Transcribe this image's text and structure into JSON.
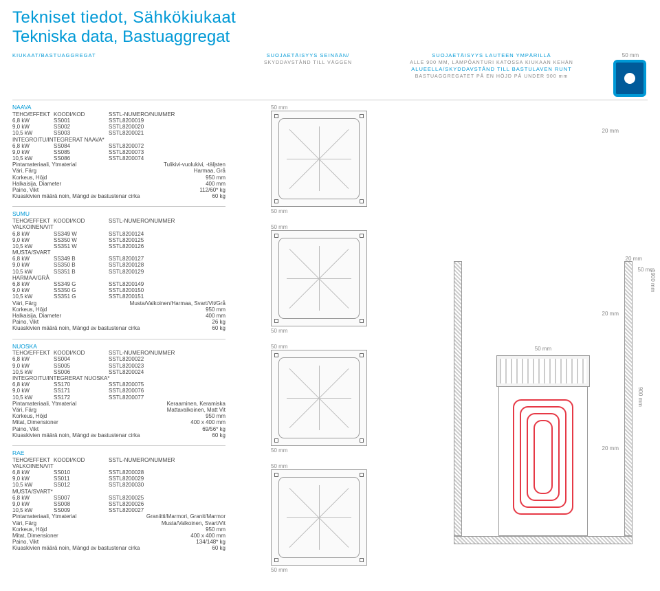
{
  "title1": "Tekniset tiedot, Sähkökiukaat",
  "title2": "Tekniska data, Bastuaggregat",
  "header": {
    "col1_a": "KIUKAAT/BASTUAGGREGAT",
    "col2_a": "SUOJAETÄISYYS SEINÄÄN/",
    "col2_b": "SKYDDAVSTÅND TILL VÄGGEN",
    "col3_a": "SUOJAETÄISYYS LAUTEEN YMPÄRILLÄ",
    "col3_b": "ALLE 900 MM, LÄMPÖANTURI KATOSSA KIUKAAN KEHÄN",
    "col3_c": "ALUEELLA/SKYDDAVSTÅND TILL BASTULAVEN RUNT",
    "col3_d": "BASTUAGGREGATET PÅ EN HÖJD PÅ UNDER 900 mm",
    "badge": "50 mm"
  },
  "cols": {
    "a": "TEHO/EFFEKT",
    "b": "KOODI/KOD",
    "c": "SSTL-NUMERO/NUMMER"
  },
  "naava": {
    "name": "NAAVA",
    "rows": [
      [
        "6,8 kW",
        "SS001",
        "SSTL8200019"
      ],
      [
        "9,0 kW",
        "SS002",
        "SSTL8200020"
      ],
      [
        "10,5 kW",
        "SS003",
        "SSTL8200021"
      ]
    ],
    "sub": "INTEGROITU/INTEGRERAT NAAVA*",
    "rows2": [
      [
        "6,8 kW",
        "SS084",
        "SSTL8200072"
      ],
      [
        "9,0 kW",
        "SS085",
        "SSTL8200073"
      ],
      [
        "10,5 kW",
        "SS086",
        "SSTL8200074"
      ]
    ],
    "details": [
      [
        "Pintamateriaali, Ytmaterial",
        "Tulikivi-vuolukivi, -täljsten"
      ],
      [
        "Väri, Färg",
        "Harmaa, Grå"
      ],
      [
        "Korkeus, Höjd",
        "950 mm"
      ],
      [
        "Halkaisija, Diameter",
        "400 mm"
      ],
      [
        "Paino, Vikt",
        "112/60* kg"
      ],
      [
        "Kiuaskivien määrä noin, Mängd av bastustenar cirka",
        "60 kg"
      ]
    ]
  },
  "sumu": {
    "name": "SUMU",
    "g1": "VALKOINEN/VIT",
    "rows1": [
      [
        "6,8 kW",
        "SS349 W",
        "SSTL8200124"
      ],
      [
        "9,0 kW",
        "SS350 W",
        "SSTL8200125"
      ],
      [
        "10,5 kW",
        "SS351 W",
        "SSTL8200126"
      ]
    ],
    "g2": "MUSTA/SVART",
    "rows2": [
      [
        "6,8 kW",
        "SS349 B",
        "SSTL8200127"
      ],
      [
        "9,0 kW",
        "SS350 B",
        "SSTL8200128"
      ],
      [
        "10,5 kW",
        "SS351 B",
        "SSTL8200129"
      ]
    ],
    "g3": "HARMAA/GRÅ",
    "rows3": [
      [
        "6,8 kW",
        "SS349 G",
        "SSTL8200149"
      ],
      [
        "9,0 kW",
        "SS350 G",
        "SSTL8200150"
      ],
      [
        "10,5 kW",
        "SS351 G",
        "SSTL8200151"
      ]
    ],
    "details": [
      [
        "Väri, Färg",
        "Musta/Valkoinen/Harmaa, Svart/Vit/Grå"
      ],
      [
        "Korkeus, Höjd",
        "950 mm"
      ],
      [
        "Halkaisija, Diameter",
        "400 mm"
      ],
      [
        "Paino, Vikt",
        "26 kg"
      ],
      [
        "Kiuaskivien määrä noin, Mängd av bastustenar cirka",
        "60 kg"
      ]
    ]
  },
  "nuoska": {
    "name": "NUOSKA",
    "rows": [
      [
        "6,8 kW",
        "SS004",
        "SSTL8200022"
      ],
      [
        "9,0 kW",
        "SS005",
        "SSTL8200023"
      ],
      [
        "10,5 kW",
        "SS006",
        "SSTL8200024"
      ]
    ],
    "sub": "INTEGROITU/INTEGRERAT NUOSKA*",
    "rows2": [
      [
        "6,8 kW",
        "SS170",
        "SSTL8200075"
      ],
      [
        "9,0 kW",
        "SS171",
        "SSTL8200076"
      ],
      [
        "10,5 kW",
        "SS172",
        "SSTL8200077"
      ]
    ],
    "details": [
      [
        "Pintamateriaali, Ytmaterial",
        "Keraaminen, Keramiska"
      ],
      [
        "Väri, Färg",
        "Mattavalkoinen, Matt Vit"
      ],
      [
        "Korkeus, Höjd",
        "950 mm"
      ],
      [
        "Mitat, Dimensioner",
        "400 x 400 mm"
      ],
      [
        "Paino, Vikt",
        "69/56* kg"
      ],
      [
        "Kiuaskivien määrä noin, Mängd av bastustenar cirka",
        "60 kg"
      ]
    ]
  },
  "rae": {
    "name": "RAE",
    "g1": "VALKOINEN/VIT",
    "rows1": [
      [
        "6,8 kW",
        "SS010",
        "SSTL8200028"
      ],
      [
        "9,0 kW",
        "SS011",
        "SSTL8200029"
      ],
      [
        "10,5 kW",
        "SS012",
        "SSTL8200030"
      ]
    ],
    "g2": "MUSTA/SVART*",
    "rows2": [
      [
        "6,8 kW",
        "SS007",
        "SSTL8200025"
      ],
      [
        "9,0 kW",
        "SS008",
        "SSTL8200026"
      ],
      [
        "10,5 kW",
        "SS009",
        "SSTL8200027"
      ]
    ],
    "details": [
      [
        "Pintamateriaali, Ytmaterial",
        "Graniitti/Marmori, Granit/Marmor"
      ],
      [
        "Väri, Färg",
        "Musta/Valkoinen, Svart/Vit"
      ],
      [
        "Korkeus, Höjd",
        "950 mm"
      ],
      [
        "Mitat, Dimensioner",
        "400 x 400 mm"
      ],
      [
        "Paino, Vikt",
        "134/148* kg"
      ],
      [
        "Kiuaskivien määrä noin, Mängd av bastustenar cirka",
        "60 kg"
      ]
    ]
  },
  "dim": {
    "fifty": "50 mm",
    "twenty": "20 mm",
    "ninehundred": "900 mm",
    "nineteen": "1900 mm"
  }
}
